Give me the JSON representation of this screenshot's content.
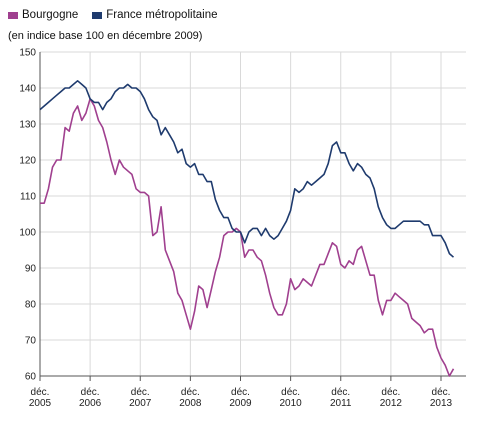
{
  "chart_data": {
    "type": "line",
    "subtitle": "(en indice base 100 en décembre 2009)",
    "ylim": [
      60,
      150
    ],
    "xlim": [
      "2005-12",
      "2013-12"
    ],
    "y_ticks": [
      "60",
      "70",
      "80",
      "90",
      "100",
      "110",
      "120",
      "130",
      "140",
      "150"
    ],
    "x_ticks": [
      {
        "month": "déc.",
        "year": "2005",
        "date": "2005-12"
      },
      {
        "month": "déc.",
        "year": "2006",
        "date": "2006-12"
      },
      {
        "month": "déc.",
        "year": "2007",
        "date": "2007-12"
      },
      {
        "month": "déc.",
        "year": "2008",
        "date": "2008-12"
      },
      {
        "month": "déc.",
        "year": "2009",
        "date": "2009-12"
      },
      {
        "month": "déc.",
        "year": "2010",
        "date": "2010-12"
      },
      {
        "month": "déc.",
        "year": "2011",
        "date": "2011-12"
      },
      {
        "month": "déc.",
        "year": "2012",
        "date": "2012-12"
      },
      {
        "month": "déc.",
        "year": "2013",
        "date": "2013-12"
      }
    ],
    "grid": "horizontal and vertical",
    "legend_position": "top-left",
    "series": [
      {
        "name": "Bourgogne",
        "color": "#a0408f",
        "points": [
          [
            "2005-12",
            108
          ],
          [
            "2006-01",
            108
          ],
          [
            "2006-02",
            112
          ],
          [
            "2006-03",
            118
          ],
          [
            "2006-04",
            120
          ],
          [
            "2006-05",
            120
          ],
          [
            "2006-06",
            129
          ],
          [
            "2006-07",
            128
          ],
          [
            "2006-08",
            133
          ],
          [
            "2006-09",
            135
          ],
          [
            "2006-10",
            131
          ],
          [
            "2006-11",
            133
          ],
          [
            "2006-12",
            137
          ],
          [
            "2007-01",
            135
          ],
          [
            "2007-02",
            131
          ],
          [
            "2007-03",
            129
          ],
          [
            "2007-04",
            125
          ],
          [
            "2007-05",
            120
          ],
          [
            "2007-06",
            116
          ],
          [
            "2007-07",
            120
          ],
          [
            "2007-08",
            118
          ],
          [
            "2007-09",
            117
          ],
          [
            "2007-10",
            116
          ],
          [
            "2007-11",
            112
          ],
          [
            "2007-12",
            111
          ],
          [
            "2008-01",
            111
          ],
          [
            "2008-02",
            110
          ],
          [
            "2008-03",
            99
          ],
          [
            "2008-04",
            100
          ],
          [
            "2008-05",
            107
          ],
          [
            "2008-06",
            95
          ],
          [
            "2008-07",
            92
          ],
          [
            "2008-08",
            89
          ],
          [
            "2008-09",
            83
          ],
          [
            "2008-10",
            81
          ],
          [
            "2008-11",
            77
          ],
          [
            "2008-12",
            73
          ],
          [
            "2009-01",
            78
          ],
          [
            "2009-02",
            85
          ],
          [
            "2009-03",
            84
          ],
          [
            "2009-04",
            79
          ],
          [
            "2009-05",
            84
          ],
          [
            "2009-06",
            89
          ],
          [
            "2009-07",
            93
          ],
          [
            "2009-08",
            99
          ],
          [
            "2009-09",
            100
          ],
          [
            "2009-10",
            100
          ],
          [
            "2009-11",
            101
          ],
          [
            "2009-12",
            100
          ],
          [
            "2010-01",
            93
          ],
          [
            "2010-02",
            95
          ],
          [
            "2010-03",
            95
          ],
          [
            "2010-04",
            93
          ],
          [
            "2010-05",
            92
          ],
          [
            "2010-06",
            88
          ],
          [
            "2010-07",
            83
          ],
          [
            "2010-08",
            79
          ],
          [
            "2010-09",
            77
          ],
          [
            "2010-10",
            77
          ],
          [
            "2010-11",
            80
          ],
          [
            "2010-12",
            87
          ],
          [
            "2011-01",
            84
          ],
          [
            "2011-02",
            85
          ],
          [
            "2011-03",
            87
          ],
          [
            "2011-04",
            86
          ],
          [
            "2011-05",
            85
          ],
          [
            "2011-06",
            88
          ],
          [
            "2011-07",
            91
          ],
          [
            "2011-08",
            91
          ],
          [
            "2011-09",
            94
          ],
          [
            "2011-10",
            97
          ],
          [
            "2011-11",
            96
          ],
          [
            "2011-12",
            91
          ],
          [
            "2012-01",
            90
          ],
          [
            "2012-02",
            92
          ],
          [
            "2012-03",
            91
          ],
          [
            "2012-04",
            95
          ],
          [
            "2012-05",
            96
          ],
          [
            "2012-06",
            92
          ],
          [
            "2012-07",
            88
          ],
          [
            "2012-08",
            88
          ],
          [
            "2012-09",
            81
          ],
          [
            "2012-10",
            77
          ],
          [
            "2012-11",
            81
          ],
          [
            "2012-12",
            81
          ],
          [
            "2013-01",
            83
          ],
          [
            "2013-02",
            82
          ],
          [
            "2013-03",
            81
          ],
          [
            "2013-04",
            80
          ],
          [
            "2013-05",
            76
          ],
          [
            "2013-06",
            75
          ],
          [
            "2013-07",
            74
          ],
          [
            "2013-08",
            72
          ],
          [
            "2013-09",
            73
          ],
          [
            "2013-10",
            73
          ],
          [
            "2013-11",
            68
          ],
          [
            "2013-12",
            65
          ],
          [
            "2014-01",
            63
          ],
          [
            "2014-02",
            60
          ],
          [
            "2014-03",
            62
          ]
        ]
      },
      {
        "name": "France métropolitaine",
        "color": "#1f3b6e",
        "points": [
          [
            "2005-12",
            134
          ],
          [
            "2006-01",
            135
          ],
          [
            "2006-02",
            136
          ],
          [
            "2006-03",
            137
          ],
          [
            "2006-04",
            138
          ],
          [
            "2006-05",
            139
          ],
          [
            "2006-06",
            140
          ],
          [
            "2006-07",
            140
          ],
          [
            "2006-08",
            141
          ],
          [
            "2006-09",
            142
          ],
          [
            "2006-10",
            141
          ],
          [
            "2006-11",
            140
          ],
          [
            "2006-12",
            137
          ],
          [
            "2007-01",
            136
          ],
          [
            "2007-02",
            136
          ],
          [
            "2007-03",
            134
          ],
          [
            "2007-04",
            136
          ],
          [
            "2007-05",
            137
          ],
          [
            "2007-06",
            139
          ],
          [
            "2007-07",
            140
          ],
          [
            "2007-08",
            140
          ],
          [
            "2007-09",
            141
          ],
          [
            "2007-10",
            140
          ],
          [
            "2007-11",
            140
          ],
          [
            "2007-12",
            139
          ],
          [
            "2008-01",
            137
          ],
          [
            "2008-02",
            134
          ],
          [
            "2008-03",
            132
          ],
          [
            "2008-04",
            131
          ],
          [
            "2008-05",
            127
          ],
          [
            "2008-06",
            129
          ],
          [
            "2008-07",
            127
          ],
          [
            "2008-08",
            125
          ],
          [
            "2008-09",
            122
          ],
          [
            "2008-10",
            123
          ],
          [
            "2008-11",
            119
          ],
          [
            "2008-12",
            118
          ],
          [
            "2009-01",
            119
          ],
          [
            "2009-02",
            116
          ],
          [
            "2009-03",
            116
          ],
          [
            "2009-04",
            114
          ],
          [
            "2009-05",
            114
          ],
          [
            "2009-06",
            109
          ],
          [
            "2009-07",
            106
          ],
          [
            "2009-08",
            104
          ],
          [
            "2009-09",
            104
          ],
          [
            "2009-10",
            101
          ],
          [
            "2009-11",
            100
          ],
          [
            "2009-12",
            100
          ],
          [
            "2010-01",
            97
          ],
          [
            "2010-02",
            100
          ],
          [
            "2010-03",
            101
          ],
          [
            "2010-04",
            101
          ],
          [
            "2010-05",
            99
          ],
          [
            "2010-06",
            101
          ],
          [
            "2010-07",
            99
          ],
          [
            "2010-08",
            98
          ],
          [
            "2010-09",
            99
          ],
          [
            "2010-10",
            101
          ],
          [
            "2010-11",
            103
          ],
          [
            "2010-12",
            106
          ],
          [
            "2011-01",
            112
          ],
          [
            "2011-02",
            111
          ],
          [
            "2011-03",
            112
          ],
          [
            "2011-04",
            114
          ],
          [
            "2011-05",
            113
          ],
          [
            "2011-06",
            114
          ],
          [
            "2011-07",
            115
          ],
          [
            "2011-08",
            116
          ],
          [
            "2011-09",
            119
          ],
          [
            "2011-10",
            124
          ],
          [
            "2011-11",
            125
          ],
          [
            "2011-12",
            122
          ],
          [
            "2012-01",
            122
          ],
          [
            "2012-02",
            119
          ],
          [
            "2012-03",
            117
          ],
          [
            "2012-04",
            119
          ],
          [
            "2012-05",
            118
          ],
          [
            "2012-06",
            116
          ],
          [
            "2012-07",
            115
          ],
          [
            "2012-08",
            112
          ],
          [
            "2012-09",
            107
          ],
          [
            "2012-10",
            104
          ],
          [
            "2012-11",
            102
          ],
          [
            "2012-12",
            101
          ],
          [
            "2013-01",
            101
          ],
          [
            "2013-02",
            102
          ],
          [
            "2013-03",
            103
          ],
          [
            "2013-04",
            103
          ],
          [
            "2013-05",
            103
          ],
          [
            "2013-06",
            103
          ],
          [
            "2013-07",
            103
          ],
          [
            "2013-08",
            102
          ],
          [
            "2013-09",
            102
          ],
          [
            "2013-10",
            99
          ],
          [
            "2013-11",
            99
          ],
          [
            "2013-12",
            99
          ],
          [
            "2014-01",
            97
          ],
          [
            "2014-02",
            94
          ],
          [
            "2014-03",
            93
          ]
        ]
      }
    ]
  }
}
